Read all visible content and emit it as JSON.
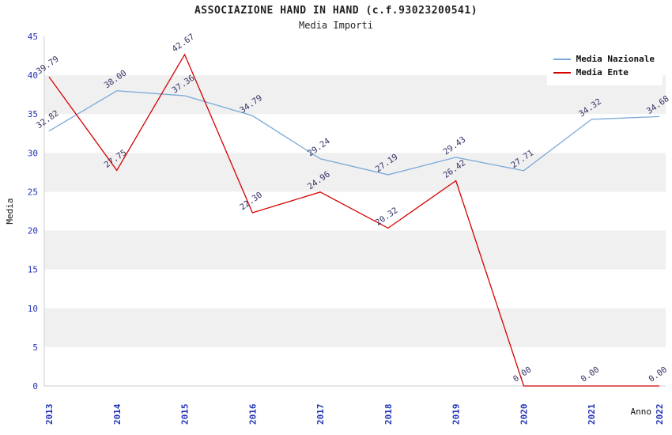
{
  "chart_data": {
    "type": "line",
    "title": "ASSOCIAZIONE HAND IN HAND (c.f.93023200541)",
    "subtitle": "Media Importi",
    "xlabel": "Anno",
    "ylabel": "Media",
    "ylim": [
      0,
      45
    ],
    "yticks": [
      0,
      5,
      10,
      15,
      20,
      25,
      30,
      35,
      40,
      45
    ],
    "categories": [
      "2013",
      "2014",
      "2015",
      "2016",
      "2017",
      "2018",
      "2019",
      "2020",
      "2021",
      "2022"
    ],
    "series": [
      {
        "name": "Media Nazionale",
        "color": "#7AA9D8",
        "values": [
          32.82,
          38.0,
          37.36,
          34.79,
          29.24,
          27.19,
          29.43,
          27.71,
          34.32,
          34.68
        ]
      },
      {
        "name": "Media Ente",
        "color": "#D40000",
        "values": [
          39.79,
          27.75,
          42.67,
          22.3,
          24.96,
          20.32,
          26.42,
          0.0,
          0.0,
          0.0
        ]
      }
    ],
    "legend_position": "top-right",
    "grid": "banded",
    "colors": {
      "tick": "#2233BB",
      "data_label": "#333366",
      "band": "#F0F0F0",
      "background": "#FFFFFF",
      "axis": "#CCCCCC",
      "title": "#222222"
    }
  }
}
